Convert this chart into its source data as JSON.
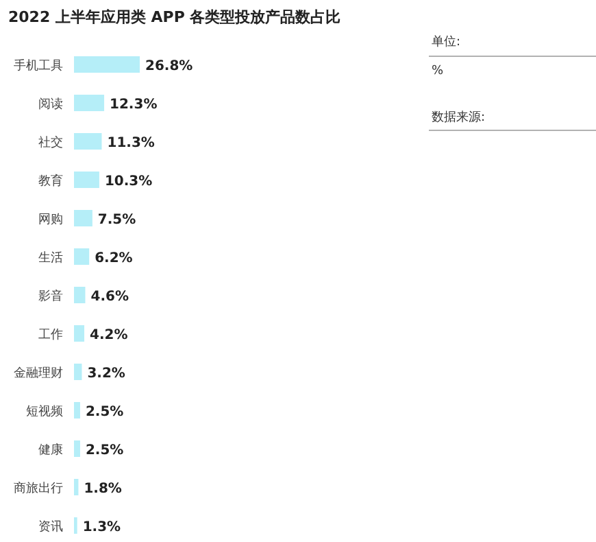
{
  "chart_data": {
    "type": "bar",
    "orientation": "horizontal",
    "title": "2022 上半年应用类 APP 各类型投放产品数占比",
    "categories": [
      "手机工具",
      "阅读",
      "社交",
      "教育",
      "网购",
      "生活",
      "影音",
      "工作",
      "金融理财",
      "短视频",
      "健康",
      "商旅出行",
      "资讯"
    ],
    "values": [
      26.8,
      12.3,
      11.3,
      10.3,
      7.5,
      6.2,
      4.6,
      4.2,
      3.2,
      2.5,
      2.5,
      1.8,
      1.3
    ],
    "value_labels": [
      "26.8%",
      "12.3%",
      "11.3%",
      "10.3%",
      "7.5%",
      "6.2%",
      "4.6%",
      "4.2%",
      "3.2%",
      "2.5%",
      "2.5%",
      "1.8%",
      "1.3%"
    ],
    "color": "#b5eef8",
    "annotations": [
      "单位:",
      "%",
      "数据来源:"
    ]
  }
}
